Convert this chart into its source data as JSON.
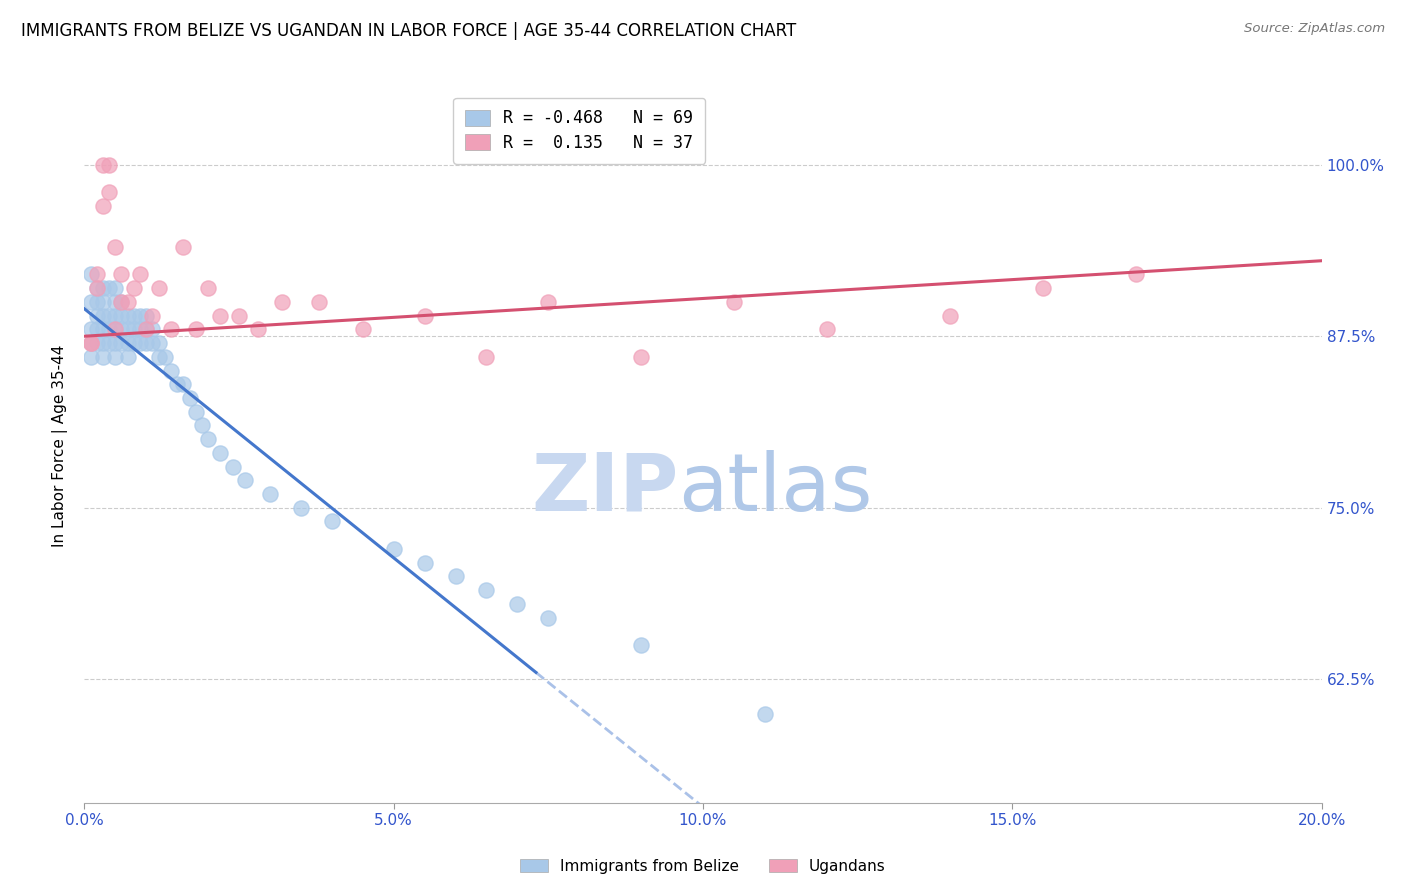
{
  "title": "IMMIGRANTS FROM BELIZE VS UGANDAN IN LABOR FORCE | AGE 35-44 CORRELATION CHART",
  "source": "Source: ZipAtlas.com",
  "ylabel": "In Labor Force | Age 35-44",
  "right_yticks": [
    0.625,
    0.75,
    0.875,
    1.0
  ],
  "right_yticklabels": [
    "62.5%",
    "75.0%",
    "87.5%",
    "100.0%"
  ],
  "xlim": [
    0.0,
    0.2
  ],
  "ylim": [
    0.535,
    1.055
  ],
  "xticks": [
    0.0,
    0.05,
    0.1,
    0.15,
    0.2
  ],
  "xticklabels": [
    "0.0%",
    "5.0%",
    "10.0%",
    "15.0%",
    "20.0%"
  ],
  "belize_R": -0.468,
  "belize_N": 69,
  "ugandan_R": 0.135,
  "ugandan_N": 37,
  "belize_color": "#a8c8e8",
  "belize_line_color": "#4477cc",
  "ugandan_color": "#f0a0b8",
  "ugandan_line_color": "#d45070",
  "watermark": "ZIPatlas",
  "watermark_color_zip": "#c8d8f0",
  "watermark_color_atlas": "#b0c8e8",
  "legend_label_belize": "Immigrants from Belize",
  "legend_label_ugandan": "Ugandans",
  "title_fontsize": 12,
  "axis_label_color": "#3355cc",
  "grid_color": "#cccccc",
  "belize_x": [
    0.001,
    0.001,
    0.001,
    0.001,
    0.001,
    0.002,
    0.002,
    0.002,
    0.002,
    0.002,
    0.003,
    0.003,
    0.003,
    0.003,
    0.003,
    0.003,
    0.004,
    0.004,
    0.004,
    0.004,
    0.005,
    0.005,
    0.005,
    0.005,
    0.005,
    0.005,
    0.006,
    0.006,
    0.006,
    0.006,
    0.007,
    0.007,
    0.007,
    0.007,
    0.008,
    0.008,
    0.008,
    0.009,
    0.009,
    0.009,
    0.01,
    0.01,
    0.01,
    0.011,
    0.011,
    0.012,
    0.012,
    0.013,
    0.014,
    0.015,
    0.016,
    0.017,
    0.018,
    0.019,
    0.02,
    0.022,
    0.024,
    0.026,
    0.03,
    0.035,
    0.04,
    0.05,
    0.055,
    0.06,
    0.065,
    0.07,
    0.075,
    0.09,
    0.11
  ],
  "belize_y": [
    0.87,
    0.86,
    0.88,
    0.9,
    0.92,
    0.87,
    0.88,
    0.89,
    0.9,
    0.91,
    0.86,
    0.87,
    0.88,
    0.89,
    0.9,
    0.91,
    0.87,
    0.88,
    0.89,
    0.91,
    0.86,
    0.87,
    0.88,
    0.89,
    0.9,
    0.91,
    0.87,
    0.88,
    0.89,
    0.9,
    0.86,
    0.87,
    0.88,
    0.89,
    0.87,
    0.88,
    0.89,
    0.87,
    0.88,
    0.89,
    0.87,
    0.88,
    0.89,
    0.87,
    0.88,
    0.86,
    0.87,
    0.86,
    0.85,
    0.84,
    0.84,
    0.83,
    0.82,
    0.81,
    0.8,
    0.79,
    0.78,
    0.77,
    0.76,
    0.75,
    0.74,
    0.72,
    0.71,
    0.7,
    0.69,
    0.68,
    0.67,
    0.65,
    0.6
  ],
  "ugandan_x": [
    0.001,
    0.001,
    0.002,
    0.002,
    0.003,
    0.003,
    0.004,
    0.004,
    0.005,
    0.005,
    0.006,
    0.006,
    0.007,
    0.008,
    0.009,
    0.01,
    0.011,
    0.012,
    0.014,
    0.016,
    0.018,
    0.02,
    0.022,
    0.025,
    0.028,
    0.032,
    0.038,
    0.045,
    0.055,
    0.065,
    0.075,
    0.09,
    0.105,
    0.12,
    0.14,
    0.155,
    0.17
  ],
  "ugandan_y": [
    0.87,
    0.87,
    0.91,
    0.92,
    0.97,
    1.0,
    0.98,
    1.0,
    0.88,
    0.94,
    0.92,
    0.9,
    0.9,
    0.91,
    0.92,
    0.88,
    0.89,
    0.91,
    0.88,
    0.94,
    0.88,
    0.91,
    0.89,
    0.89,
    0.88,
    0.9,
    0.9,
    0.88,
    0.89,
    0.86,
    0.9,
    0.86,
    0.9,
    0.88,
    0.89,
    0.91,
    0.92
  ],
  "belize_line_x0": 0.0,
  "belize_line_y0": 0.895,
  "belize_line_x1": 0.073,
  "belize_line_y1": 0.63,
  "belize_line_solid_end": 0.073,
  "belize_line_dashed_end": 0.185,
  "ugandan_line_x0": 0.0,
  "ugandan_line_y0": 0.875,
  "ugandan_line_x1": 0.2,
  "ugandan_line_y1": 0.93
}
